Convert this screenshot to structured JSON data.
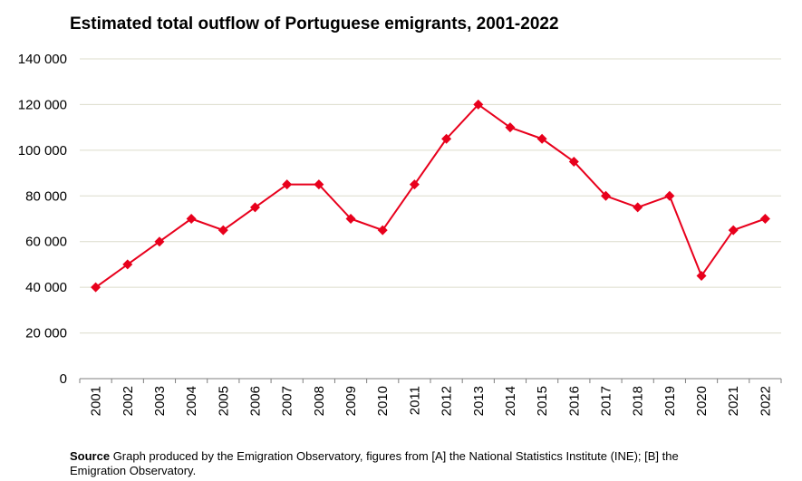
{
  "chart_data": {
    "type": "line",
    "title": "Estimated total outflow of Portuguese emigrants, 2001-2022",
    "xlabel": "",
    "ylabel": "",
    "ylim": [
      0,
      140000
    ],
    "yticks": [
      0,
      20000,
      40000,
      60000,
      80000,
      100000,
      120000,
      140000
    ],
    "ytick_labels": [
      "0",
      "20 000",
      "40 000",
      "60 000",
      "80 000",
      "100 000",
      "120 000",
      "140 000"
    ],
    "categories": [
      "2001",
      "2002",
      "2003",
      "2004",
      "2005",
      "2006",
      "2007",
      "2008",
      "2009",
      "2010",
      "2011",
      "2012",
      "2013",
      "2014",
      "2015",
      "2016",
      "2017",
      "2018",
      "2019",
      "2020",
      "2021",
      "2022"
    ],
    "series": [
      {
        "values": [
          40000,
          50000,
          60000,
          70000,
          65000,
          75000,
          85000,
          85000,
          70000,
          65000,
          85000,
          105000,
          120000,
          110000,
          105000,
          95000,
          80000,
          75000,
          80000,
          45000,
          65000,
          70000
        ]
      }
    ],
    "grid": true,
    "line_color": "#e8001c",
    "marker": "diamond"
  },
  "source": {
    "label": "Source",
    "text": " Graph produced by the Emigration Observatory, figures from [A] the National Statistics Institute (INE); [B] the Emigration Observatory."
  },
  "colors": {
    "grid": "#dcdccb",
    "axis": "#7f7f7f",
    "series": "#e8001c"
  }
}
